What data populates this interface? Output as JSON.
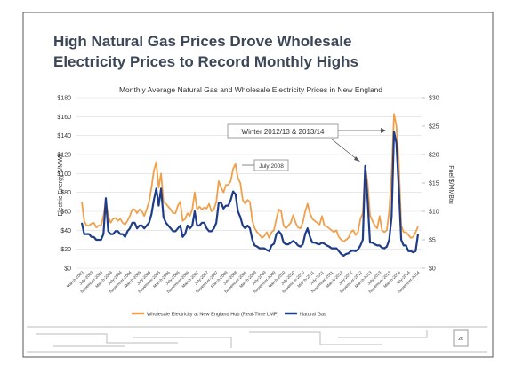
{
  "slide_title": "High Natural Gas Prices Drove Wholesale Electricity Prices to Record Monthly Highs",
  "page_number": "26",
  "chart_data": {
    "type": "line",
    "title": "Monthly Average Natural Gas and Wholesale Electricity Prices in New England",
    "y_label": "Electric Energy $/MWh",
    "y2_label": "Fuel $/MMBtu",
    "annotations": [
      "July 2008",
      "Winter 2012/13 & 2013/14"
    ],
    "categories": [
      "March-2003",
      null,
      null,
      null,
      "July-2003",
      null,
      null,
      null,
      "November-2003",
      null,
      null,
      null,
      "March-2004",
      null,
      null,
      null,
      "July-2004",
      null,
      null,
      null,
      "November-2004",
      null,
      null,
      null,
      "March-2005",
      null,
      null,
      null,
      "July-2005",
      null,
      null,
      null,
      "November-2005",
      null,
      null,
      null,
      "March-2006",
      null,
      null,
      null,
      "July-2006",
      null,
      null,
      null,
      "November-2006",
      null,
      null,
      null,
      "March-2007",
      null,
      null,
      null,
      "July-2007",
      null,
      null,
      null,
      "November-2007",
      null,
      null,
      null,
      "March-2008",
      null,
      null,
      null,
      "July-2008",
      null,
      null,
      null,
      "November-2008",
      null,
      null,
      null,
      "March-2009",
      null,
      null,
      null,
      "July-2009",
      null,
      null,
      null,
      "November-2009",
      null,
      null,
      null,
      "March-2010",
      null,
      null,
      null,
      "July-2010",
      null,
      null,
      null,
      "November-2010",
      null,
      null,
      null,
      "March-2011",
      null,
      null,
      null,
      "July-2011",
      null,
      null,
      null,
      "November-2011",
      null,
      null,
      null,
      "March-2012",
      null,
      null,
      null,
      "July-2012",
      null,
      null,
      null,
      "November-2012",
      null,
      null,
      null,
      "March-2013",
      null,
      null,
      null,
      "July-2013",
      null,
      null,
      null,
      "November-2013",
      null,
      null,
      null,
      "March-2014",
      null,
      null,
      null,
      "July-2014",
      null,
      null,
      null,
      "November-2014"
    ],
    "series": [
      {
        "name": "Wholesale Electricity at New England Hub (Real-Time LMP)",
        "color": "#f0a04b",
        "values": [
          70,
          50,
          45,
          45,
          47,
          48,
          43,
          45,
          45,
          55,
          72,
          55,
          48,
          52,
          53,
          50,
          52,
          48,
          46,
          50,
          55,
          62,
          62,
          58,
          62,
          60,
          55,
          62,
          70,
          85,
          103,
          112,
          85,
          100,
          70,
          68,
          65,
          62,
          58,
          58,
          66,
          70,
          50,
          52,
          58,
          55,
          62,
          80,
          62,
          65,
          62,
          64,
          63,
          68,
          60,
          62,
          70,
          92,
          85,
          80,
          88,
          88,
          92,
          105,
          110,
          95,
          90,
          72,
          68,
          72,
          70,
          50,
          42,
          38,
          35,
          32,
          34,
          38,
          32,
          38,
          40,
          52,
          62,
          60,
          45,
          42,
          45,
          48,
          56,
          48,
          43,
          42,
          48,
          60,
          68,
          58,
          52,
          50,
          48,
          46,
          55,
          45,
          44,
          42,
          40,
          38,
          40,
          33,
          30,
          28,
          30,
          32,
          38,
          40,
          35,
          38,
          52,
          58,
          108,
          90,
          56,
          50,
          45,
          42,
          55,
          40,
          38,
          40,
          60,
          100,
          163,
          150,
          112,
          45,
          38,
          38,
          35,
          32,
          33,
          38,
          44
        ]
      },
      {
        "name": "Natural Gas",
        "color": "#1f3c88",
        "axis": "y2",
        "values": [
          8,
          6,
          6,
          6,
          5.5,
          5.5,
          5,
          5,
          5,
          6,
          12.3,
          6.5,
          6,
          6,
          6.5,
          6.5,
          6,
          6,
          5.5,
          6.5,
          7,
          8,
          8,
          7,
          7.5,
          7.5,
          7,
          7.5,
          8,
          9.5,
          12,
          14,
          11,
          14,
          9,
          8,
          7.5,
          7,
          6.5,
          6.5,
          7,
          7.5,
          5.5,
          6,
          7.5,
          7,
          7.5,
          10,
          7.5,
          7.5,
          8,
          8,
          7,
          6.5,
          6.5,
          7,
          8,
          11.5,
          11.5,
          10.5,
          11,
          11,
          12,
          13.5,
          13,
          10,
          9,
          7.5,
          7,
          7.5,
          7,
          5,
          4,
          3.8,
          3.5,
          3.5,
          3.5,
          3.2,
          3,
          4,
          4.3,
          6,
          6.5,
          6,
          4.5,
          4.2,
          4.2,
          4.5,
          4.8,
          4.5,
          4,
          3.8,
          4.2,
          6,
          7,
          5.5,
          4.5,
          4.5,
          4.3,
          4.2,
          4.5,
          4.3,
          4,
          3.8,
          3.5,
          3.5,
          3.5,
          3,
          2.5,
          2.2,
          2.5,
          2.6,
          3,
          3.1,
          3,
          3.3,
          4,
          5,
          18,
          12,
          4.5,
          4.5,
          4.2,
          4,
          4,
          3.6,
          3.5,
          3.8,
          5,
          9,
          24,
          22,
          14,
          5,
          4,
          4,
          3,
          3,
          2.8,
          3,
          6
        ]
      }
    ],
    "ylim": [
      0,
      180
    ],
    "yticks": [
      {
        "value": 0,
        "label": "$0"
      },
      {
        "value": 20,
        "label": "$20"
      },
      {
        "value": 40,
        "label": "$40"
      },
      {
        "value": 60,
        "label": "$60"
      },
      {
        "value": 80,
        "label": "$80"
      },
      {
        "value": 100,
        "label": "$100"
      },
      {
        "value": 120,
        "label": "$120"
      },
      {
        "value": 140,
        "label": "$140"
      },
      {
        "value": 160,
        "label": "$160"
      },
      {
        "value": 180,
        "label": "$180"
      }
    ],
    "y2lim": [
      0,
      30
    ],
    "y2ticks": [
      {
        "value": 0,
        "label": "$0"
      },
      {
        "value": 5,
        "label": "$5"
      },
      {
        "value": 10,
        "label": "$10"
      },
      {
        "value": 15,
        "label": "$15"
      },
      {
        "value": 20,
        "label": "$20"
      },
      {
        "value": 25,
        "label": "$25"
      },
      {
        "value": 30,
        "label": "$30"
      }
    ],
    "grid": true
  }
}
